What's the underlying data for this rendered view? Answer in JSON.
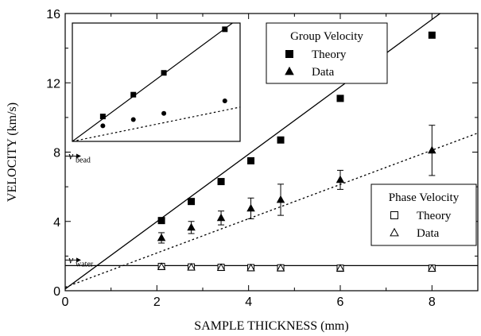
{
  "chart_data": {
    "type": "scatter",
    "xlabel": "SAMPLE THICKNESS (mm)",
    "ylabel": "VELOCITY (km/s)",
    "xlim": [
      0,
      9
    ],
    "ylim": [
      0,
      16
    ],
    "xticks": [
      "0",
      "2",
      "4",
      "6",
      "8"
    ],
    "yticks": [
      "0",
      "4",
      "8",
      "12",
      "16"
    ],
    "grid": false,
    "legends": [
      {
        "title": "Group Velocity",
        "placement": "top-right",
        "entries": [
          {
            "label": "Theory",
            "marker": "filled-square"
          },
          {
            "label": "Data",
            "marker": "filled-triangle"
          }
        ]
      },
      {
        "title": "Phase Velocity",
        "placement": "lower-right",
        "entries": [
          {
            "label": "Theory",
            "marker": "open-square"
          },
          {
            "label": "Data",
            "marker": "open-triangle"
          }
        ]
      }
    ],
    "annotations": [
      {
        "main": "v",
        "sub": "bead",
        "y": 7.45
      },
      {
        "main": "v",
        "sub": "water",
        "y": 1.45
      }
    ],
    "series": [
      {
        "marker": "filled-square",
        "x": [
          2.1,
          2.75,
          3.4,
          4.05,
          4.7,
          6.0,
          8.0
        ],
        "y": [
          4.05,
          5.15,
          6.3,
          7.5,
          8.7,
          11.1,
          14.75
        ]
      },
      {
        "marker": "filled-triangle",
        "x": [
          2.1,
          2.75,
          3.4,
          4.05,
          4.7,
          6.0,
          8.0
        ],
        "y": [
          3.05,
          3.65,
          4.2,
          4.75,
          5.25,
          6.4,
          8.1
        ],
        "yerr": [
          0.3,
          0.35,
          0.4,
          0.6,
          0.9,
          0.55,
          1.45
        ]
      },
      {
        "marker": "open-square",
        "x": [
          2.1,
          2.75,
          3.4,
          4.05,
          4.7,
          6.0,
          8.0
        ],
        "y": [
          1.4,
          1.37,
          1.35,
          1.33,
          1.32,
          1.3,
          1.3
        ]
      },
      {
        "marker": "open-triangle",
        "x": [
          2.1,
          2.75,
          3.4,
          4.05,
          4.7,
          6.0,
          8.0
        ],
        "y": [
          1.38,
          1.35,
          1.33,
          1.31,
          1.3,
          1.29,
          1.28
        ]
      }
    ],
    "fits": [
      {
        "style": "solid",
        "x": [
          0,
          9
        ],
        "y": [
          0.1,
          17.6
        ]
      },
      {
        "style": "dotted",
        "x": [
          0,
          9
        ],
        "y": [
          0.2,
          9.1
        ]
      },
      {
        "style": "solid",
        "x": [
          0,
          9
        ],
        "y": [
          1.45,
          1.45
        ]
      }
    ],
    "inset": {
      "placement": "top-left",
      "series": [
        {
          "marker": "filled-square",
          "x": [
            0.2,
            0.4,
            0.6,
            1.0
          ],
          "y": [
            0.65,
            1.0,
            1.35,
            2.05
          ]
        },
        {
          "marker": "filled-circle",
          "x": [
            0.2,
            0.4,
            0.6,
            1.0
          ],
          "y": [
            0.5,
            0.6,
            0.7,
            0.9
          ]
        }
      ],
      "fits": [
        {
          "style": "solid",
          "x": [
            0,
            1.05
          ],
          "y": [
            0.25,
            2.15
          ]
        },
        {
          "style": "dotted",
          "x": [
            0,
            1.6
          ],
          "y": [
            0.25,
            1.05
          ]
        }
      ]
    }
  }
}
